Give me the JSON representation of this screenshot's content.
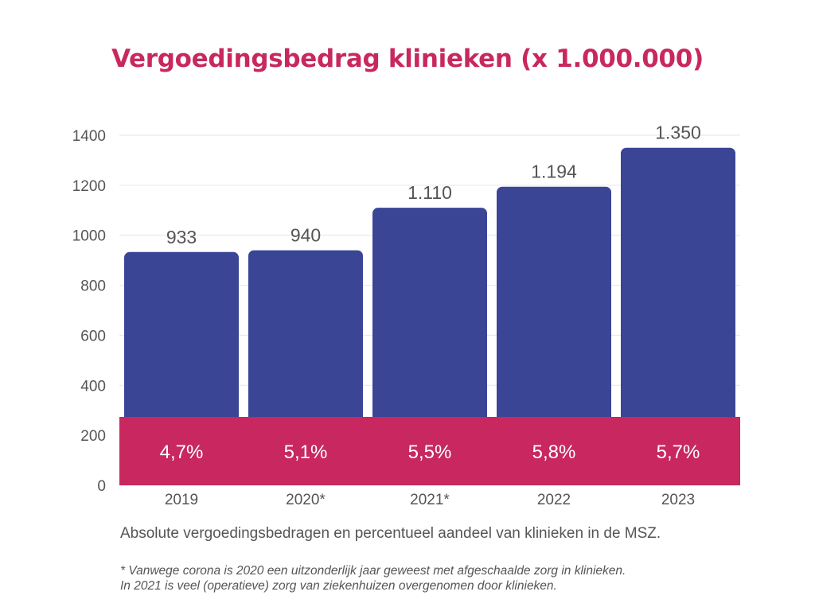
{
  "chart_data": {
    "type": "bar",
    "title": "Vergoedingsbedrag klinieken (x 1.000.000)",
    "categories": [
      "2019",
      "2020*",
      "2021*",
      "2022",
      "2023"
    ],
    "values": [
      933,
      940,
      1110,
      1194,
      1350
    ],
    "value_labels": [
      "933",
      "940",
      "1.110",
      "1.194",
      "1.350"
    ],
    "percentage_labels": [
      "4,7%",
      "5,1%",
      "5,5%",
      "5,8%",
      "5,7%"
    ],
    "yticks": [
      "0",
      "200",
      "400",
      "600",
      "800",
      "1000",
      "1200",
      "1400"
    ],
    "ylim": [
      0,
      1400
    ],
    "grid": true,
    "colors": {
      "bar": "#3a4596",
      "band": "#c8285f",
      "title": "#c8285f"
    }
  },
  "caption": "Absolute vergoedingsbedragen en percentueel aandeel van klinieken in de MSZ.",
  "footnote": {
    "line1": "* Vanwege corona is 2020 een uitzonderlijk jaar geweest met afgeschaalde zorg in klinieken.",
    "line2": "In 2021 is veel (operatieve) zorg van ziekenhuizen overgenomen door klinieken."
  }
}
